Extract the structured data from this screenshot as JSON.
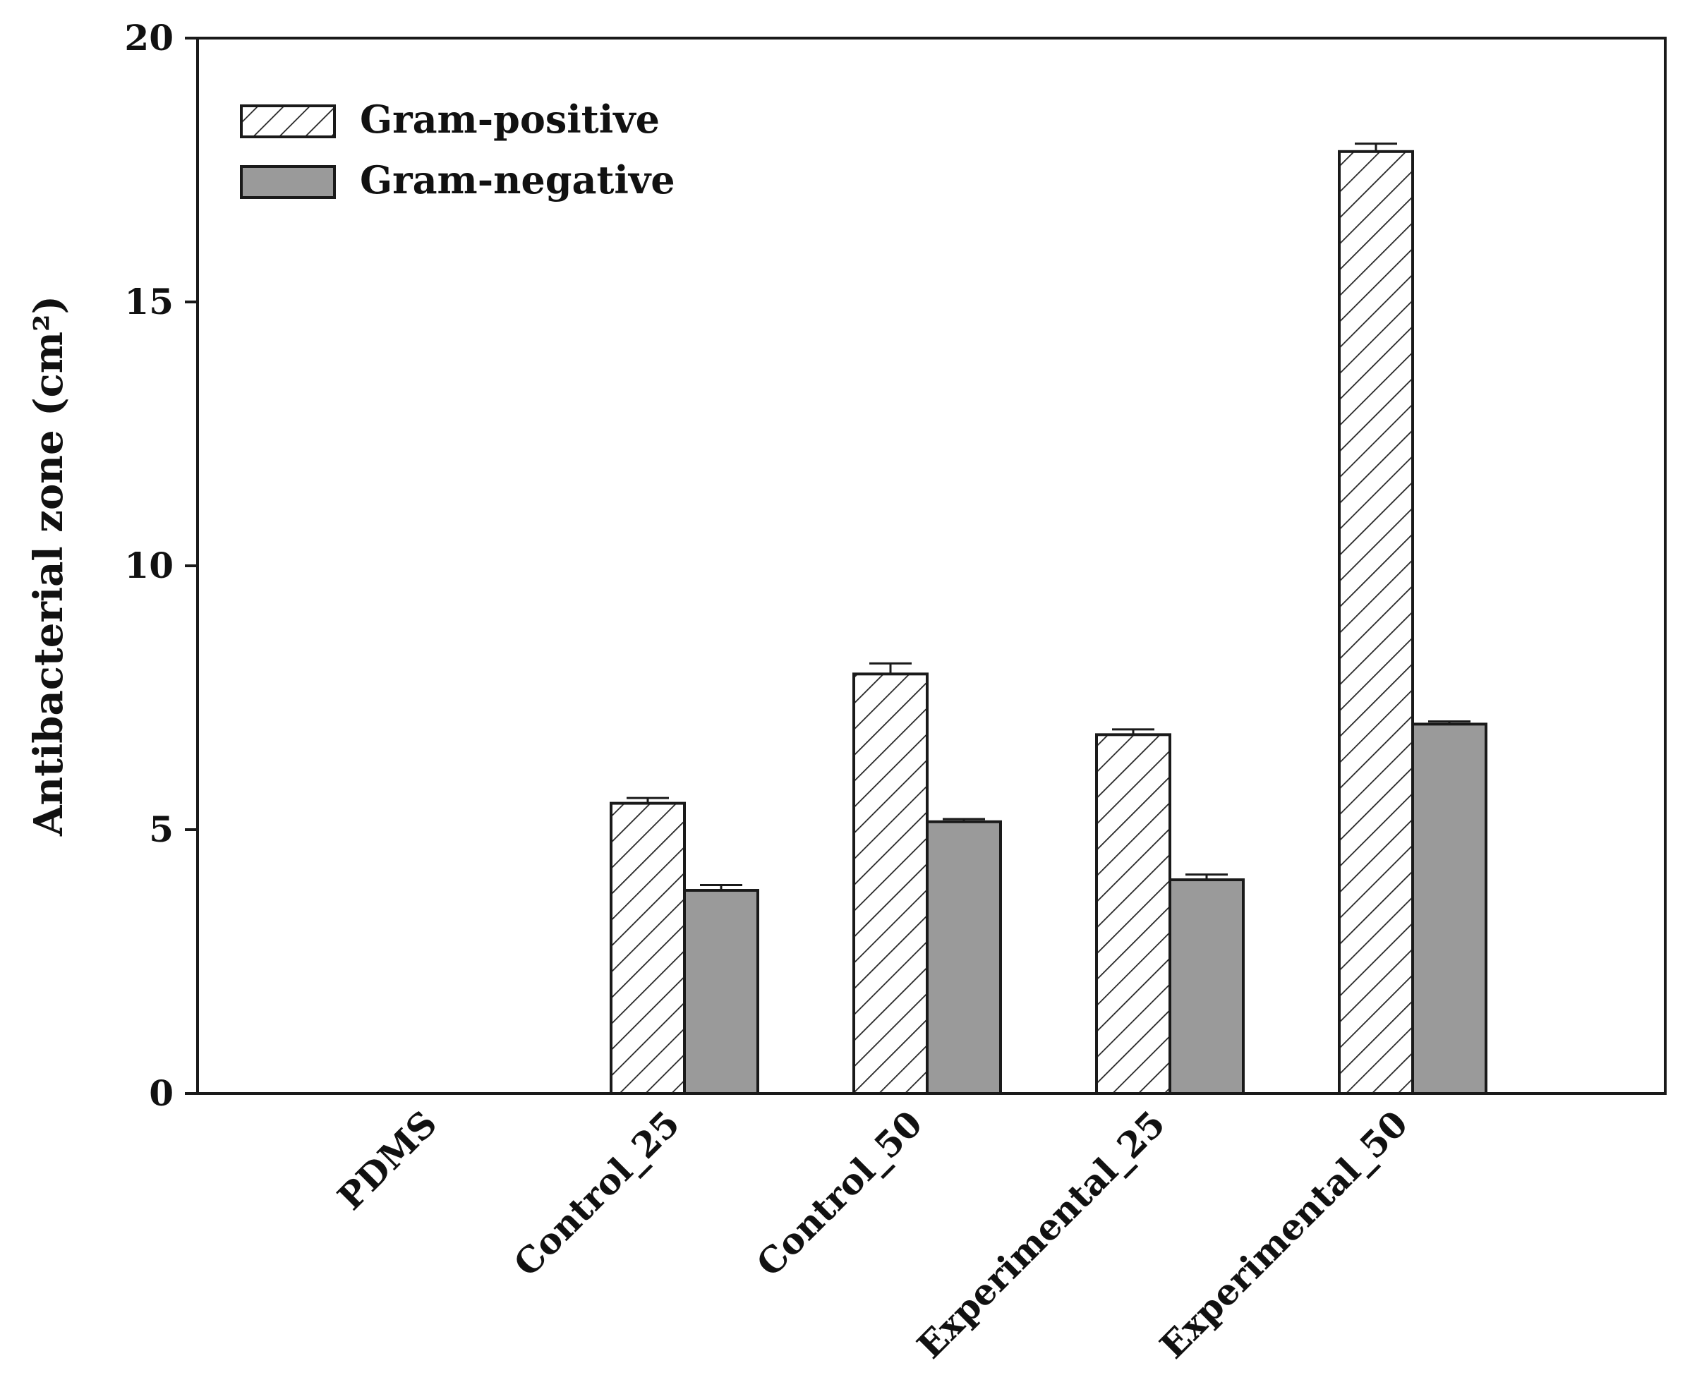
{
  "chart_data": {
    "type": "bar",
    "title": "",
    "xlabel": "",
    "ylabel": "Antibacterial zone (cm²)",
    "ylim": [
      0,
      20
    ],
    "yticks": [
      0,
      5,
      10,
      15,
      20
    ],
    "categories": [
      "PDMS",
      "Control_25",
      "Control_50",
      "Experimental_25",
      "Experimental_50"
    ],
    "series": [
      {
        "name": "Gram-positive",
        "values": [
          0,
          5.5,
          7.95,
          6.8,
          17.85
        ],
        "errors": [
          0,
          0.1,
          0.2,
          0.1,
          0.15
        ],
        "style": "hatched",
        "color": "#ffffff"
      },
      {
        "name": "Gram-negative",
        "values": [
          0,
          3.85,
          5.15,
          4.05,
          7.0
        ],
        "errors": [
          0,
          0.1,
          0.05,
          0.1,
          0.05
        ],
        "style": "solid",
        "color": "#9a9a9a"
      }
    ],
    "grid": false,
    "legend_position": "top-left"
  }
}
